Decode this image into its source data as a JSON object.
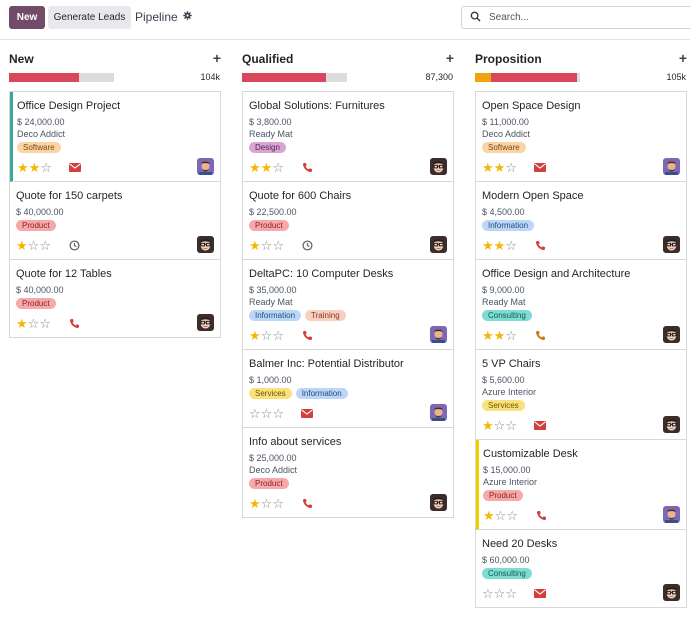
{
  "toolbar": {
    "new_label": "New",
    "generate_label": "Generate Leads",
    "breadcrumb": "Pipeline",
    "search_placeholder": "Search..."
  },
  "colors": {
    "brand": "#714b67",
    "progress_red": "#d9485a",
    "progress_orange": "#f0a30a",
    "star": "#f3b705",
    "mail": "#d23f3f",
    "phone": "#d23f3f"
  },
  "columns": [
    {
      "title": "New",
      "total": "104k",
      "progress": {
        "red": 0.67,
        "orange": 0
      },
      "cards": [
        {
          "title": "Office Design Project",
          "amount": "$ 24,000.00",
          "company": "Deco Addict",
          "tags": [
            {
              "label": "Software",
              "color": "orange"
            }
          ],
          "stars": 2,
          "activity": "mail",
          "avatar": "purple-man",
          "accent": "teal"
        },
        {
          "title": "Quote for 150 carpets",
          "amount": "$ 40,000.00",
          "company": "",
          "tags": [
            {
              "label": "Product",
              "color": "red"
            }
          ],
          "stars": 1,
          "activity": "clock",
          "avatar": "glasses-man",
          "accent": ""
        },
        {
          "title": "Quote for 12 Tables",
          "amount": "$ 40,000.00",
          "company": "",
          "tags": [
            {
              "label": "Product",
              "color": "red"
            }
          ],
          "stars": 1,
          "activity": "phone",
          "avatar": "glasses-man",
          "accent": ""
        }
      ]
    },
    {
      "title": "Qualified",
      "total": "87,300",
      "progress": {
        "red": 0.8,
        "orange": 0
      },
      "cards": [
        {
          "title": "Global Solutions: Furnitures",
          "amount": "$ 3,800.00",
          "company": "Ready Mat",
          "tags": [
            {
              "label": "Design",
              "color": "purple"
            }
          ],
          "stars": 2,
          "activity": "phone",
          "avatar": "glasses-man",
          "accent": ""
        },
        {
          "title": "Quote for 600 Chairs",
          "amount": "$ 22,500.00",
          "company": "",
          "tags": [
            {
              "label": "Product",
              "color": "red"
            }
          ],
          "stars": 1,
          "activity": "clock",
          "avatar": "glasses-man",
          "accent": ""
        },
        {
          "title": "DeltaPC: 10 Computer Desks",
          "amount": "$ 35,000.00",
          "company": "Ready Mat",
          "tags": [
            {
              "label": "Information",
              "color": "blue"
            },
            {
              "label": "Training",
              "color": "salmon"
            }
          ],
          "stars": 1,
          "activity": "phone",
          "avatar": "purple-man",
          "accent": ""
        },
        {
          "title": "Balmer Inc: Potential Distributor",
          "amount": "$ 1,000.00",
          "company": "",
          "tags": [
            {
              "label": "Services",
              "color": "yellow"
            },
            {
              "label": "Information",
              "color": "blue"
            }
          ],
          "stars": 0,
          "activity": "mail",
          "avatar": "purple-man",
          "accent": ""
        },
        {
          "title": "Info about services",
          "amount": "$ 25,000.00",
          "company": "Deco Addict",
          "tags": [
            {
              "label": "Product",
              "color": "red"
            }
          ],
          "stars": 1,
          "activity": "phone",
          "avatar": "glasses-man",
          "accent": ""
        }
      ]
    },
    {
      "title": "Proposition",
      "total": "105k",
      "progress": {
        "red": 0.82,
        "orange": 0.15
      },
      "cards": [
        {
          "title": "Open Space Design",
          "amount": "$ 11,000.00",
          "company": "Deco Addict",
          "tags": [
            {
              "label": "Software",
              "color": "orange"
            }
          ],
          "stars": 2,
          "activity": "mail",
          "avatar": "purple-man",
          "accent": ""
        },
        {
          "title": "Modern Open Space",
          "amount": "$ 4,500.00",
          "company": "",
          "tags": [
            {
              "label": "Information",
              "color": "blue"
            }
          ],
          "stars": 2,
          "activity": "phone",
          "avatar": "glasses-man",
          "accent": ""
        },
        {
          "title": "Office Design and Architecture",
          "amount": "$ 9,000.00",
          "company": "Ready Mat",
          "tags": [
            {
              "label": "Consulting",
              "color": "teal"
            }
          ],
          "stars": 2,
          "activity": "phone-orange",
          "avatar": "glasses-man",
          "accent": ""
        },
        {
          "title": "5 VP Chairs",
          "amount": "$ 5,600.00",
          "company": "Azure Interior",
          "tags": [
            {
              "label": "Services",
              "color": "yellow"
            }
          ],
          "stars": 1,
          "activity": "mail",
          "avatar": "glasses-man",
          "accent": ""
        },
        {
          "title": "Customizable Desk",
          "amount": "$ 15,000.00",
          "company": "Azure Interior",
          "tags": [
            {
              "label": "Product",
              "color": "red"
            }
          ],
          "stars": 1,
          "activity": "phone",
          "avatar": "purple-man",
          "accent": "yellow"
        },
        {
          "title": "Need 20 Desks",
          "amount": "$ 60,000.00",
          "company": "",
          "tags": [
            {
              "label": "Consulting",
              "color": "teal"
            }
          ],
          "stars": 0,
          "activity": "mail",
          "avatar": "glasses-man",
          "accent": ""
        }
      ]
    }
  ]
}
